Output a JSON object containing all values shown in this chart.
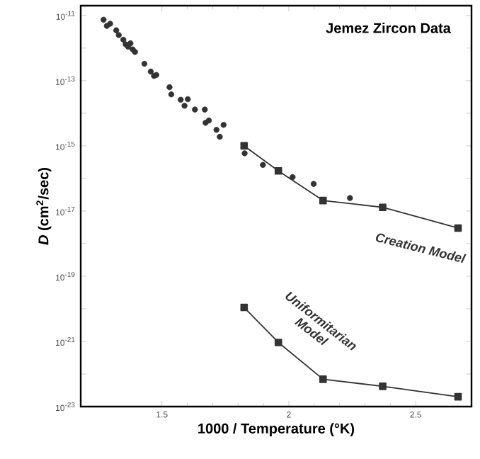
{
  "chart_data": {
    "type": "scatter",
    "title": "Jemez Zircon Data",
    "xlabel": "1000 / Temperature (°K)",
    "ylabel": "*D* (cm$^{2}$/sec)",
    "log": "y",
    "xlim": [
      1.18,
      2.72
    ],
    "ylim": [
      1e-23,
      2e-11
    ],
    "xticks": [
      1.5,
      2,
      2.5
    ],
    "yticks": [
      {
        "value": 1e-23,
        "label": "10$^{-23}$"
      },
      {
        "value": 1e-22,
        "label": null
      },
      {
        "value": 1e-21,
        "label": "10$^{-21}$"
      },
      {
        "value": 1e-20,
        "label": null
      },
      {
        "value": 1e-19,
        "label": "10$^{-19}$"
      },
      {
        "value": 1e-18,
        "label": null
      },
      {
        "value": 1e-17,
        "label": "10$^{-17}$"
      },
      {
        "value": 1e-16,
        "label": null
      },
      {
        "value": 1e-15,
        "label": "10$^{-15}$"
      },
      {
        "value": 1e-14,
        "label": null
      },
      {
        "value": 1e-13,
        "label": "10$^{-13}$"
      },
      {
        "value": 1e-12,
        "label": null
      },
      {
        "value": 1e-11,
        "label": "10$^{-11}$"
      }
    ],
    "series": [
      {
        "marker": "circle",
        "color": "#333333",
        "x": [
          1.27,
          1.283,
          1.296,
          1.32,
          1.33,
          1.348,
          1.357,
          1.367,
          1.376,
          1.385,
          1.394,
          1.431,
          1.456,
          1.469,
          1.478,
          1.53,
          1.537,
          1.574,
          1.589,
          1.602,
          1.63,
          1.669,
          1.672,
          1.685,
          1.715,
          1.728,
          1.743,
          1.824,
          1.826,
          1.898,
          1.959,
          2.015,
          2.098,
          2.241
        ],
        "values": [
          7.4e-12,
          4.8e-12,
          5.6e-12,
          3.5e-12,
          2.5e-12,
          1.8e-12,
          1.3e-12,
          1.1e-12,
          1.4e-12,
          9.1e-13,
          7.6e-13,
          3.3e-13,
          1.9e-13,
          1.4e-13,
          1.5e-13,
          6.3e-14,
          3.8e-14,
          2.6e-14,
          1.7e-14,
          2.7e-14,
          1.3e-14,
          1.3e-14,
          5.1e-15,
          6e-15,
          3.1e-15,
          1.9e-15,
          4.4e-15,
          null,
          5.9e-16,
          2.6e-16,
          1.7e-16,
          1.1e-16,
          6.8e-17,
          2.5e-17
        ]
      },
      {
        "type": "line",
        "name": "Creation Model",
        "marker": "square",
        "line_style": "solid",
        "color": "#333333",
        "x": [
          1.824,
          1.959,
          2.135,
          2.37,
          2.667
        ],
        "values": [
          1e-15,
          1.7e-16,
          2.1e-17,
          1.3e-17,
          3e-18
        ]
      },
      {
        "type": "line",
        "name": "Uniformitarian Model",
        "marker": "square",
        "line_style": "solid",
        "color": "#333333",
        "x": [
          1.824,
          1.959,
          2.135,
          2.37,
          2.667
        ],
        "values": [
          1.1e-20,
          9.3e-22,
          6.9e-23,
          4.2e-23,
          2e-23
        ]
      }
    ]
  }
}
